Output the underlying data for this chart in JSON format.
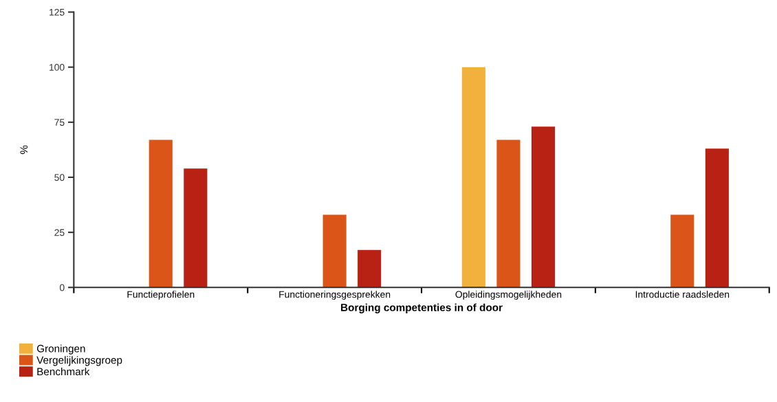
{
  "chart_data": {
    "type": "bar",
    "xlabel": "Borging competenties in of door",
    "ylabel": "%",
    "categories": [
      "Functieprofielen",
      "Functioneringsgesprekken",
      "Opleidingsmogelijkheden",
      "Introductie raadsleden"
    ],
    "series": [
      {
        "name": "Groningen",
        "color": "#f2b13c",
        "values": [
          null,
          null,
          100,
          null
        ]
      },
      {
        "name": "Vergelijkingsgroep",
        "color": "#db5519",
        "values": [
          67,
          33,
          67,
          33
        ]
      },
      {
        "name": "Benchmark",
        "color": "#b82214",
        "values": [
          54,
          17,
          73,
          63
        ]
      }
    ],
    "ylim": [
      0,
      125
    ],
    "yticks": [
      0,
      25,
      50,
      75,
      100,
      125
    ],
    "grid": false,
    "legend": "bottom left"
  }
}
